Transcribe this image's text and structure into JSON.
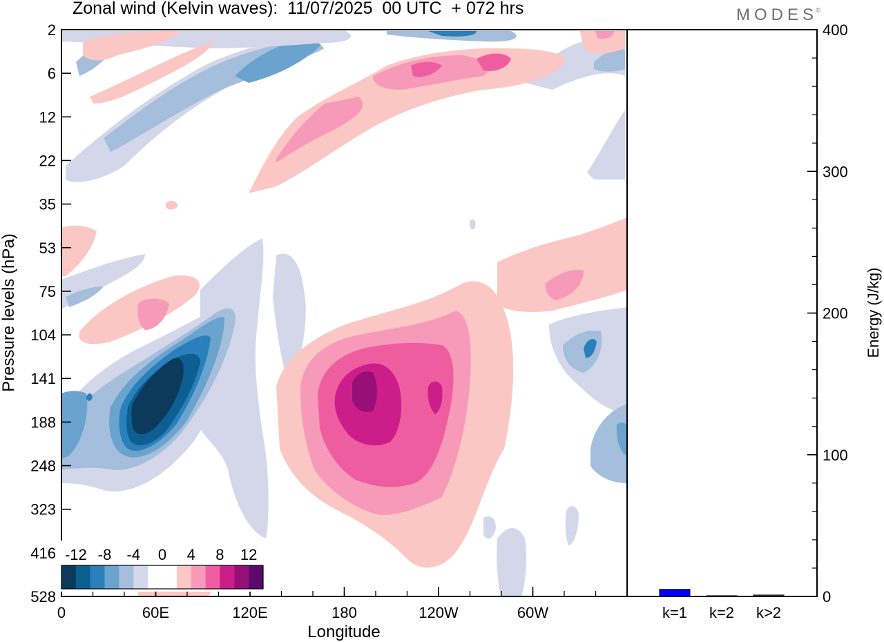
{
  "header": {
    "title": "Zonal wind (Kelvin waves):  11/07/2025  00 UTC  + 072 hrs",
    "brand": "MODES",
    "brand_mark": "©"
  },
  "chart_data": [
    {
      "type": "heatmap",
      "xlabel": "Longitude",
      "ylabel": "Pressure levels (hPa)",
      "x_ticks": [
        "0",
        "60E",
        "120E",
        "180",
        "120W",
        "60W"
      ],
      "x_tick_degrees": [
        0,
        60,
        120,
        180,
        240,
        300
      ],
      "xlim": [
        0,
        360
      ],
      "y_ticks": [
        "2",
        "6",
        "12",
        "22",
        "35",
        "53",
        "75",
        "104",
        "141",
        "188",
        "248",
        "323",
        "416",
        "528"
      ],
      "colorbar": {
        "labels": [
          "-12",
          "-8",
          "-4",
          "0",
          "4",
          "8",
          "12"
        ],
        "colors": [
          "#0b3a5a",
          "#0d5f91",
          "#2a80bb",
          "#6aa3cd",
          "#a5bedc",
          "#d4d6e9",
          "#ffffff",
          "#ffffff",
          "#fbc7c4",
          "#f79aba",
          "#ee5d9f",
          "#cb1e8b",
          "#981077",
          "#5b0a6c"
        ]
      },
      "features": [
        {
          "kind": "min",
          "lon": 58,
          "level": "141",
          "value_approx": -14
        },
        {
          "kind": "min",
          "lon": 0,
          "level": "188",
          "value_approx": -6
        },
        {
          "kind": "min",
          "lon": 335,
          "level": "141",
          "value_approx": -8
        },
        {
          "kind": "min",
          "lon": 355,
          "level": "188",
          "value_approx": -6
        },
        {
          "kind": "max",
          "lon": 190,
          "level": "141",
          "value_approx": 12
        },
        {
          "kind": "max",
          "lon": 240,
          "level": "141",
          "value_approx": 10
        },
        {
          "kind": "max",
          "lon": 60,
          "level": "104",
          "value_approx": 6
        },
        {
          "kind": "max",
          "lon": 225,
          "level": "6",
          "value_approx": 8
        },
        {
          "kind": "max",
          "lon": 165,
          "level": "12",
          "value_approx": 6
        }
      ]
    },
    {
      "type": "bar",
      "ylabel": "Energy (J/kg)",
      "categories": [
        "k=1",
        "k=2",
        "k>2"
      ],
      "values": [
        5,
        0.5,
        1
      ],
      "ylim": [
        0,
        400
      ],
      "y_ticks": [
        "0",
        "100",
        "200",
        "300",
        "400"
      ],
      "bar_color": "#0000ff"
    }
  ]
}
